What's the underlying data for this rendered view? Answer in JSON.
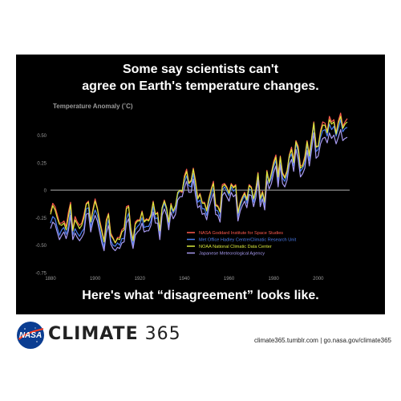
{
  "headline": {
    "line1": "Some say scientists can't",
    "line2": "agree on Earth's temperature changes.",
    "bottom": "Here's what “disagreement” looks like."
  },
  "footer": {
    "brand_bold": "CLIMATE",
    "brand_number": "365",
    "links": "climate365.tumblr.com  |  go.nasa.gov/climate365",
    "logo_text": "NASA"
  },
  "chart_data": {
    "type": "line",
    "title": "",
    "ylabel": "Temperature Anomaly (˚C)",
    "xlabel": "",
    "xlim": [
      1880,
      2013
    ],
    "ylim": [
      -0.75,
      0.7
    ],
    "xticks": [
      "1880",
      "1900",
      "1920",
      "1940",
      "1960",
      "1980",
      "2000"
    ],
    "yticks": [
      "0.50",
      "0.25",
      "0",
      "-0.25",
      "-0.50",
      "-0.75"
    ],
    "zero_line": true,
    "legend_position": "lower-right",
    "x_start": 1880,
    "colors": [
      "#ff5a4e",
      "#4a7df0",
      "#d8e83c",
      "#a79af0"
    ],
    "series": [
      {
        "name": "NASA Goddard Institute for Space Studies",
        "values": [
          -0.2,
          -0.12,
          -0.15,
          -0.22,
          -0.3,
          -0.3,
          -0.28,
          -0.33,
          -0.2,
          -0.11,
          -0.36,
          -0.24,
          -0.29,
          -0.32,
          -0.3,
          -0.22,
          -0.12,
          -0.1,
          -0.28,
          -0.17,
          -0.08,
          -0.16,
          -0.27,
          -0.36,
          -0.46,
          -0.27,
          -0.21,
          -0.39,
          -0.43,
          -0.48,
          -0.43,
          -0.43,
          -0.36,
          -0.34,
          -0.15,
          -0.14,
          -0.35,
          -0.45,
          -0.29,
          -0.27,
          -0.27,
          -0.19,
          -0.28,
          -0.26,
          -0.27,
          -0.22,
          -0.1,
          -0.22,
          -0.2,
          -0.36,
          -0.16,
          -0.09,
          -0.16,
          -0.29,
          -0.12,
          -0.2,
          -0.15,
          -0.03,
          -0.01,
          -0.02,
          0.13,
          0.19,
          0.07,
          0.09,
          0.2,
          0.09,
          -0.07,
          -0.03,
          -0.11,
          -0.11,
          -0.18,
          -0.07,
          0.01,
          0.08,
          -0.13,
          -0.14,
          -0.19,
          0.05,
          0.06,
          0.03,
          -0.03,
          0.06,
          0.03,
          0.05,
          -0.2,
          -0.11,
          -0.06,
          -0.02,
          -0.08,
          0.05,
          0.03,
          -0.08,
          0.01,
          0.16,
          -0.07,
          -0.01,
          -0.1,
          0.18,
          0.07,
          0.16,
          0.26,
          0.32,
          0.14,
          0.31,
          0.16,
          0.12,
          0.18,
          0.32,
          0.39,
          0.27,
          0.45,
          0.4,
          0.22,
          0.23,
          0.31,
          0.45,
          0.33,
          0.47,
          0.62,
          0.4,
          0.4,
          0.54,
          0.62,
          0.61,
          0.53,
          0.67,
          0.62,
          0.64,
          0.52,
          0.63,
          0.7,
          0.58,
          0.62,
          0.65
        ]
      },
      {
        "name": "Met Office Hadley Centre/Climatic Research Unit",
        "values": [
          -0.3,
          -0.24,
          -0.26,
          -0.34,
          -0.41,
          -0.36,
          -0.34,
          -0.4,
          -0.33,
          -0.17,
          -0.41,
          -0.35,
          -0.39,
          -0.42,
          -0.38,
          -0.35,
          -0.17,
          -0.16,
          -0.34,
          -0.24,
          -0.18,
          -0.23,
          -0.34,
          -0.44,
          -0.52,
          -0.34,
          -0.27,
          -0.46,
          -0.5,
          -0.51,
          -0.48,
          -0.5,
          -0.44,
          -0.44,
          -0.26,
          -0.21,
          -0.4,
          -0.5,
          -0.36,
          -0.33,
          -0.31,
          -0.25,
          -0.34,
          -0.33,
          -0.33,
          -0.28,
          -0.15,
          -0.26,
          -0.25,
          -0.41,
          -0.18,
          -0.12,
          -0.18,
          -0.32,
          -0.15,
          -0.21,
          -0.17,
          -0.04,
          0.0,
          -0.01,
          0.07,
          0.13,
          0.04,
          0.03,
          0.15,
          0.0,
          -0.11,
          -0.09,
          -0.17,
          -0.17,
          -0.23,
          -0.11,
          -0.04,
          0.02,
          -0.18,
          -0.19,
          -0.25,
          0.0,
          0.03,
          -0.01,
          -0.05,
          0.03,
          -0.01,
          0.01,
          -0.24,
          -0.15,
          -0.09,
          -0.05,
          -0.12,
          0.01,
          0.0,
          -0.11,
          -0.02,
          0.14,
          -0.11,
          -0.03,
          -0.14,
          0.14,
          0.06,
          0.11,
          0.21,
          0.27,
          0.08,
          0.28,
          0.11,
          0.08,
          0.14,
          0.29,
          0.33,
          0.22,
          0.43,
          0.34,
          0.17,
          0.2,
          0.25,
          0.42,
          0.27,
          0.43,
          0.6,
          0.35,
          0.37,
          0.48,
          0.54,
          0.55,
          0.49,
          0.6,
          0.55,
          0.58,
          0.49,
          0.56,
          0.64,
          0.53,
          0.56,
          0.57
        ]
      },
      {
        "name": "NOAA National Climatic Data Center",
        "values": [
          -0.22,
          -0.14,
          -0.18,
          -0.25,
          -0.31,
          -0.32,
          -0.3,
          -0.36,
          -0.24,
          -0.13,
          -0.37,
          -0.27,
          -0.31,
          -0.35,
          -0.32,
          -0.25,
          -0.13,
          -0.11,
          -0.29,
          -0.19,
          -0.1,
          -0.17,
          -0.29,
          -0.38,
          -0.47,
          -0.29,
          -0.22,
          -0.41,
          -0.44,
          -0.48,
          -0.44,
          -0.45,
          -0.38,
          -0.36,
          -0.17,
          -0.15,
          -0.36,
          -0.46,
          -0.31,
          -0.28,
          -0.28,
          -0.2,
          -0.29,
          -0.27,
          -0.28,
          -0.23,
          -0.11,
          -0.22,
          -0.21,
          -0.37,
          -0.16,
          -0.1,
          -0.16,
          -0.29,
          -0.13,
          -0.19,
          -0.14,
          -0.02,
          0.0,
          -0.01,
          0.11,
          0.17,
          0.06,
          0.08,
          0.19,
          0.07,
          -0.08,
          -0.04,
          -0.12,
          -0.12,
          -0.19,
          -0.08,
          0.0,
          0.06,
          -0.14,
          -0.15,
          -0.2,
          0.03,
          0.05,
          0.02,
          -0.03,
          0.05,
          0.02,
          0.04,
          -0.21,
          -0.12,
          -0.07,
          -0.03,
          -0.09,
          0.04,
          0.02,
          -0.08,
          0.0,
          0.15,
          -0.08,
          -0.02,
          -0.11,
          0.17,
          0.07,
          0.15,
          0.24,
          0.3,
          0.12,
          0.3,
          0.15,
          0.11,
          0.17,
          0.31,
          0.37,
          0.25,
          0.44,
          0.38,
          0.2,
          0.22,
          0.29,
          0.44,
          0.31,
          0.46,
          0.61,
          0.39,
          0.4,
          0.52,
          0.59,
          0.59,
          0.52,
          0.64,
          0.6,
          0.62,
          0.51,
          0.61,
          0.67,
          0.56,
          0.6,
          0.62
        ]
      },
      {
        "name": "Japanese Meteorological Agency",
        "values": [
          -0.35,
          -0.29,
          -0.31,
          -0.38,
          -0.45,
          -0.41,
          -0.38,
          -0.44,
          -0.37,
          -0.23,
          -0.45,
          -0.39,
          -0.43,
          -0.46,
          -0.43,
          -0.39,
          -0.22,
          -0.21,
          -0.38,
          -0.29,
          -0.23,
          -0.28,
          -0.38,
          -0.48,
          -0.55,
          -0.39,
          -0.32,
          -0.49,
          -0.53,
          -0.55,
          -0.52,
          -0.53,
          -0.48,
          -0.47,
          -0.3,
          -0.26,
          -0.44,
          -0.53,
          -0.41,
          -0.38,
          -0.36,
          -0.3,
          -0.38,
          -0.37,
          -0.37,
          -0.32,
          -0.2,
          -0.3,
          -0.3,
          -0.45,
          -0.23,
          -0.17,
          -0.23,
          -0.36,
          -0.2,
          -0.26,
          -0.22,
          -0.09,
          -0.06,
          -0.06,
          0.02,
          0.08,
          -0.02,
          -0.02,
          0.1,
          -0.05,
          -0.16,
          -0.14,
          -0.22,
          -0.21,
          -0.27,
          -0.16,
          -0.09,
          -0.03,
          -0.22,
          -0.23,
          -0.29,
          -0.05,
          -0.02,
          -0.06,
          -0.1,
          -0.02,
          -0.06,
          -0.04,
          -0.28,
          -0.19,
          -0.14,
          -0.1,
          -0.16,
          -0.04,
          -0.05,
          -0.15,
          -0.07,
          0.09,
          -0.15,
          -0.08,
          -0.18,
          0.09,
          0.01,
          0.06,
          0.16,
          0.22,
          0.03,
          0.23,
          0.06,
          0.03,
          0.09,
          0.23,
          0.28,
          0.17,
          0.37,
          0.28,
          0.12,
          0.15,
          0.2,
          0.36,
          0.22,
          0.37,
          0.52,
          0.29,
          0.31,
          0.42,
          0.47,
          0.48,
          0.43,
          0.52,
          0.47,
          0.5,
          0.42,
          0.48,
          0.55,
          0.45,
          0.47,
          0.48
        ]
      }
    ]
  }
}
